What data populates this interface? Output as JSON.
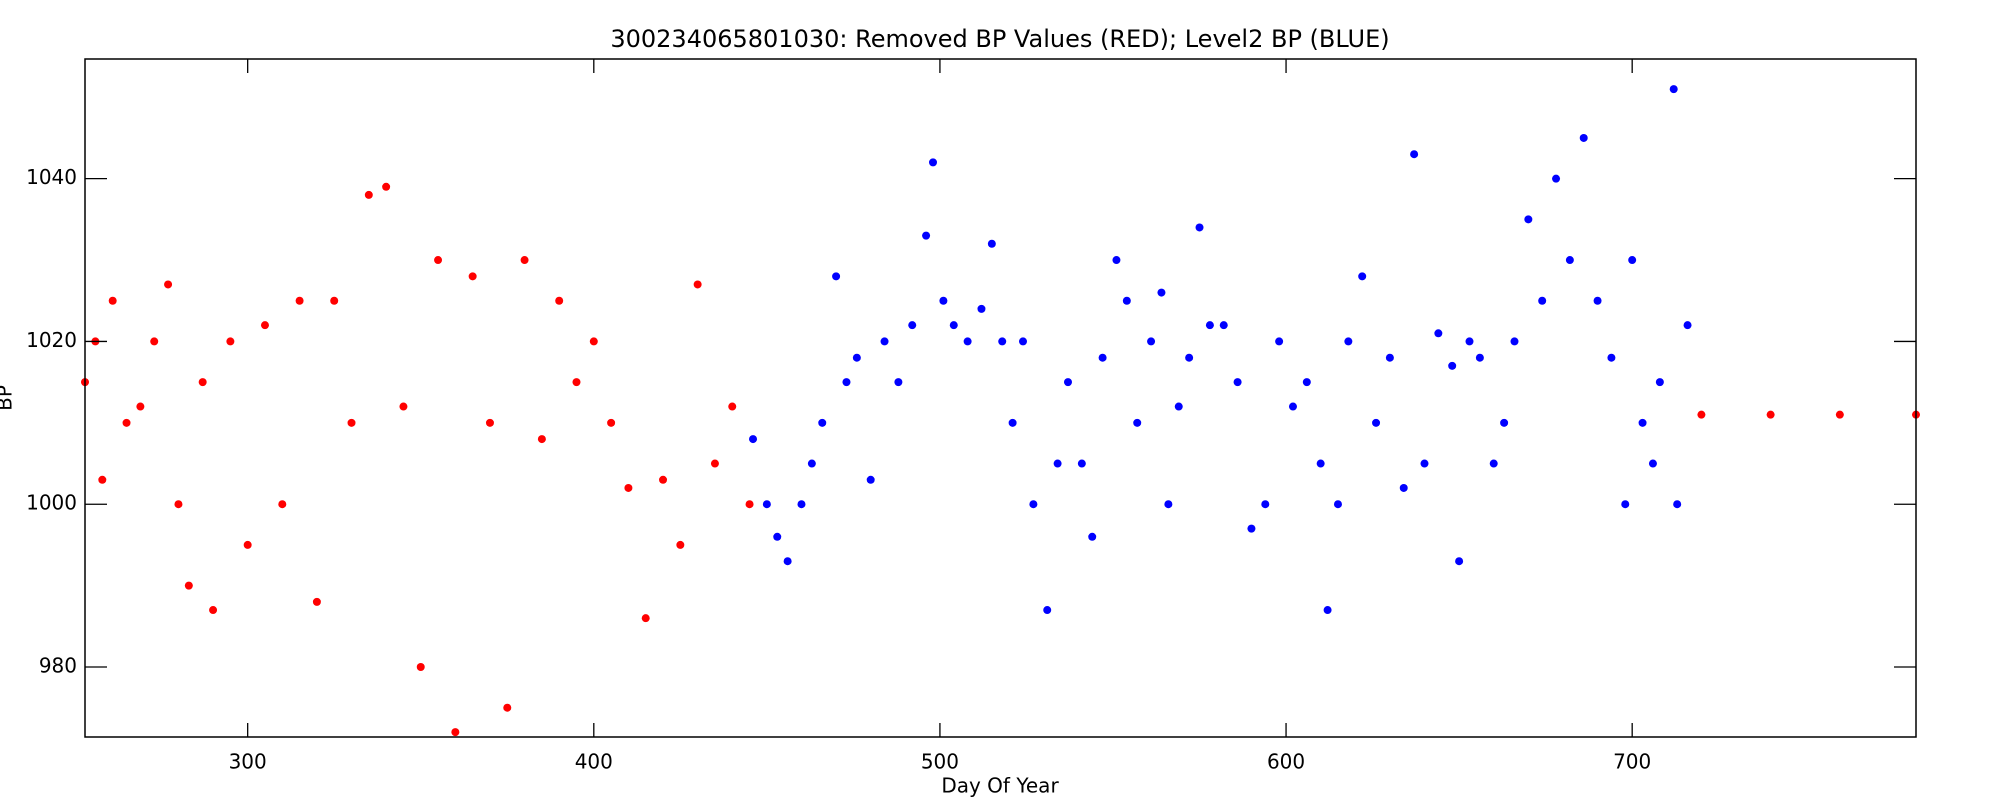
{
  "chart_data": {
    "type": "scatter",
    "title": "300234065801030: Removed BP Values (RED); Level2 BP (BLUE)",
    "x_label": "Day Of Year",
    "y_label": "BP",
    "xlim": [
      253,
      782
    ],
    "ylim": [
      971.4,
      1054.7
    ],
    "xticks": [
      300,
      400,
      500,
      600,
      700
    ],
    "yticks": [
      980,
      1000,
      1020,
      1040
    ],
    "series": [
      {
        "color": "#ff0000",
        "x": [
          253,
          256,
          258,
          261,
          265,
          269,
          273,
          277,
          280,
          283,
          287,
          290,
          295,
          300,
          305,
          310,
          315,
          320,
          325,
          330,
          335,
          340,
          345,
          350,
          355,
          360,
          365,
          370,
          375,
          380,
          385,
          390,
          395,
          400,
          405,
          410,
          415,
          420,
          425,
          430,
          435,
          440,
          445,
          720,
          740,
          760,
          782
        ],
        "values": [
          1015,
          1020,
          1003,
          1025,
          1010,
          1012,
          1020,
          1027,
          1000,
          990,
          1015,
          987,
          1020,
          995,
          1022,
          1000,
          1025,
          988,
          1025,
          1010,
          1038,
          1039,
          1012,
          980,
          1030,
          972,
          1028,
          1010,
          975,
          1030,
          1008,
          1025,
          1015,
          1020,
          1010,
          1002,
          986,
          1003,
          995,
          1027,
          1005,
          1012,
          1000,
          1011,
          1011,
          1011,
          1011
        ]
      },
      {
        "color": "#0000ff",
        "x": [
          446,
          450,
          453,
          456,
          460,
          463,
          466,
          470,
          473,
          476,
          480,
          484,
          488,
          492,
          496,
          498,
          501,
          504,
          508,
          512,
          515,
          518,
          521,
          524,
          527,
          531,
          534,
          537,
          541,
          544,
          547,
          551,
          554,
          557,
          561,
          564,
          566,
          569,
          572,
          575,
          578,
          582,
          586,
          590,
          594,
          598,
          602,
          606,
          610,
          612,
          615,
          618,
          622,
          626,
          630,
          634,
          637,
          640,
          644,
          648,
          650,
          653,
          656,
          660,
          663,
          666,
          670,
          674,
          678,
          682,
          686,
          690,
          694,
          698,
          700,
          703,
          706,
          708,
          712,
          713,
          716
        ],
        "values": [
          1008,
          1000,
          996,
          993,
          1000,
          1005,
          1010,
          1028,
          1015,
          1018,
          1003,
          1020,
          1015,
          1022,
          1033,
          1042,
          1025,
          1022,
          1020,
          1024,
          1032,
          1020,
          1010,
          1020,
          1000,
          987,
          1005,
          1015,
          1005,
          996,
          1018,
          1030,
          1025,
          1010,
          1020,
          1026,
          1000,
          1012,
          1018,
          1034,
          1022,
          1022,
          1015,
          997,
          1000,
          1020,
          1012,
          1015,
          1005,
          987,
          1000,
          1020,
          1028,
          1010,
          1018,
          1002,
          1043,
          1005,
          1021,
          1017,
          993,
          1020,
          1018,
          1005,
          1010,
          1020,
          1035,
          1025,
          1040,
          1030,
          1045,
          1025,
          1018,
          1000,
          1030,
          1010,
          1005,
          1015,
          1051,
          1000,
          1022
        ]
      }
    ]
  }
}
